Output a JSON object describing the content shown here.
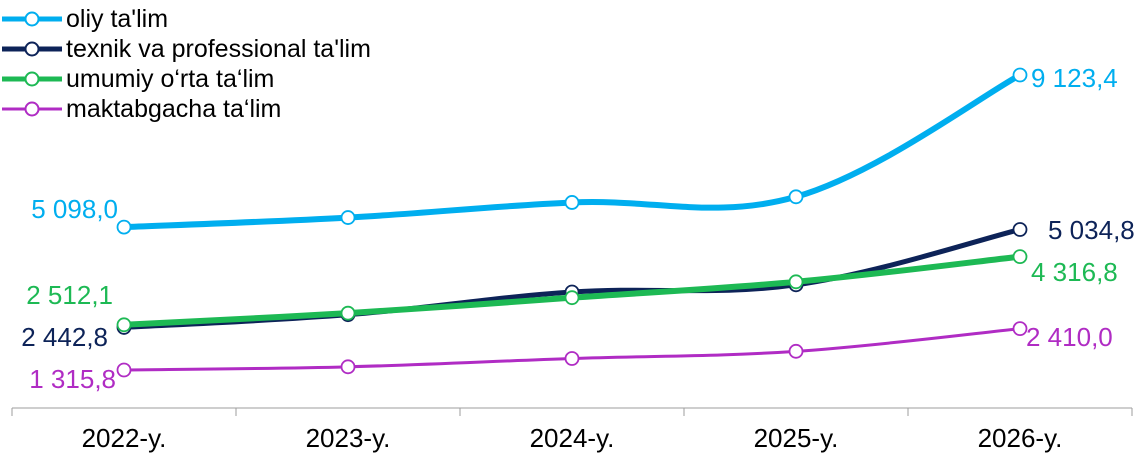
{
  "chart_data": {
    "type": "line",
    "categories": [
      "2022-y.",
      "2023-y.",
      "2024-y.",
      "2025-y.",
      "2026-y."
    ],
    "series": [
      {
        "name": "oliy ta'lim",
        "color": "#00aeef",
        "values": [
          5098.0,
          5350,
          5750,
          5900,
          9123.4
        ],
        "first_label": "5 098,0",
        "last_label": "9 123,4"
      },
      {
        "name": "texnik va professional ta'lim",
        "color": "#0d2358",
        "values": [
          2442.8,
          2780,
          3380,
          3570,
          5034.8
        ],
        "first_label": "2 442,8",
        "last_label": "5 034,8"
      },
      {
        "name": "umumiy o‘rta ta‘lim",
        "color": "#1db954",
        "values": [
          2512.1,
          2820,
          3230,
          3650,
          4316.8
        ],
        "first_label": "2 512,1",
        "last_label": "4 316,8"
      },
      {
        "name": "maktabgacha ta‘lim",
        "color": "#b02cc4",
        "values": [
          1315.8,
          1400,
          1620,
          1810,
          2410.0
        ],
        "first_label": "1 315,8",
        "last_label": "2 410,0"
      }
    ],
    "ylim": [
      0,
      10000
    ],
    "grid": false,
    "legend": "top-left",
    "title": "",
    "xlabel": "",
    "ylabel": ""
  }
}
